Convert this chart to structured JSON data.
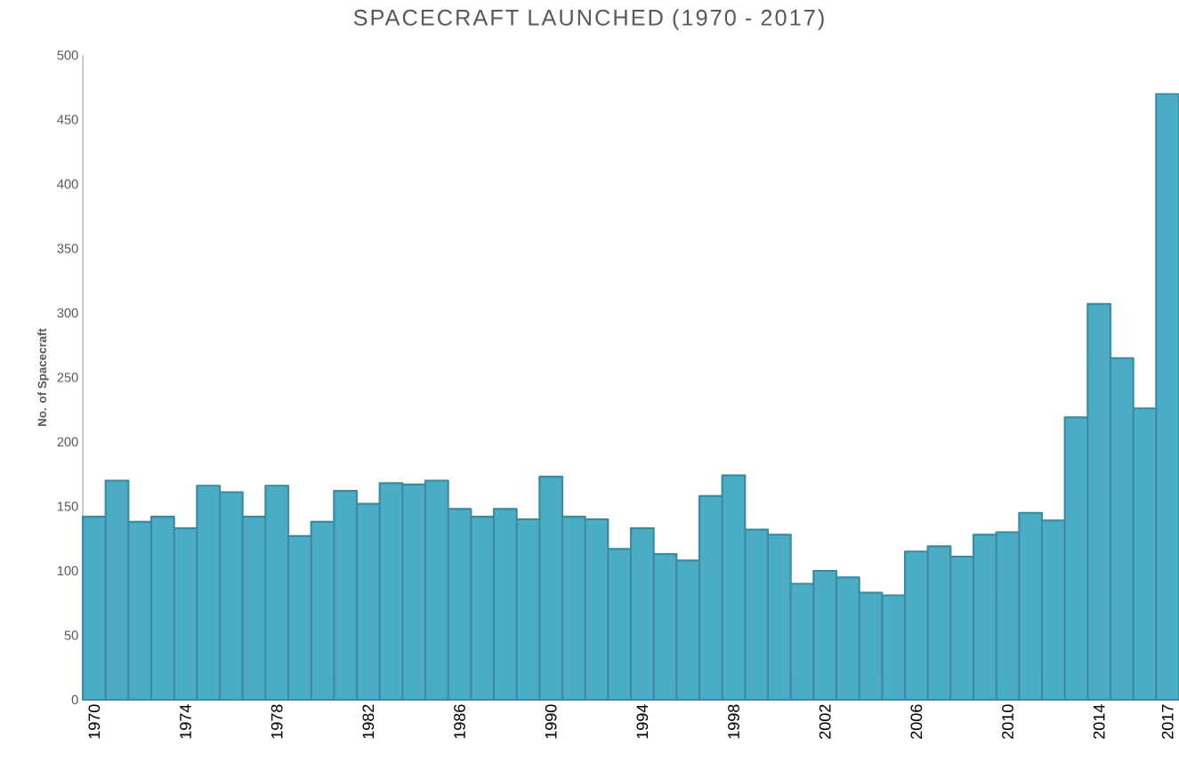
{
  "chart_data": {
    "type": "bar",
    "title": "SPACECRAFT LAUNCHED (1970 - 2017)",
    "ylabel": "No. of Spacecraft",
    "categories": [
      "1970",
      null,
      null,
      null,
      "1974",
      null,
      null,
      null,
      "1978",
      null,
      null,
      null,
      "1982",
      null,
      null,
      null,
      "1986",
      null,
      null,
      null,
      "1990",
      null,
      null,
      null,
      "1994",
      null,
      null,
      null,
      "1998",
      null,
      null,
      null,
      "2002",
      null,
      null,
      null,
      "2006",
      null,
      null,
      null,
      "2010",
      null,
      null,
      null,
      "2014",
      null,
      null,
      "2017"
    ],
    "values": [
      142,
      170,
      138,
      142,
      133,
      166,
      161,
      142,
      166,
      127,
      138,
      162,
      152,
      168,
      167,
      170,
      148,
      142,
      148,
      140,
      173,
      142,
      140,
      117,
      133,
      113,
      108,
      158,
      174,
      132,
      128,
      90,
      100,
      95,
      83,
      81,
      115,
      119,
      111,
      128,
      130,
      145,
      139,
      219,
      307,
      265,
      226,
      470
    ],
    "color": "#4bacc6",
    "ylim": [
      0,
      500
    ],
    "yticks": [
      0,
      50,
      100,
      150,
      200,
      250,
      300,
      350,
      400,
      450,
      500
    ],
    "grid": false
  }
}
